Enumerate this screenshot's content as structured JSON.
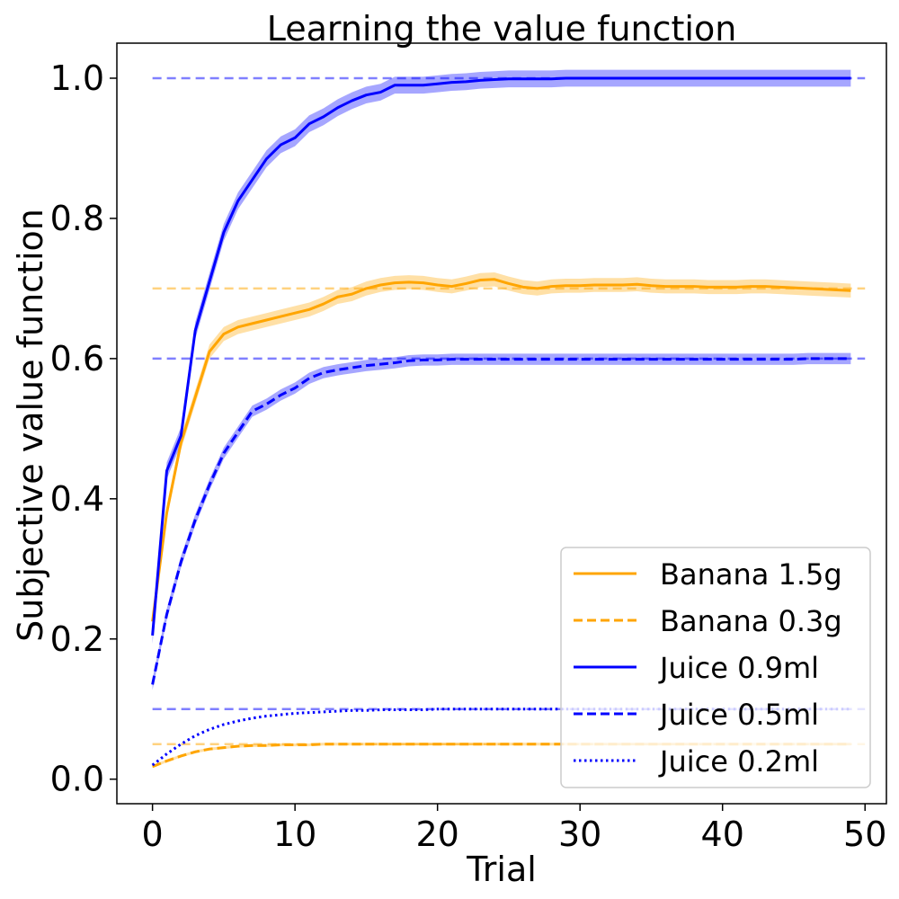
{
  "chart_data": {
    "type": "line",
    "title": "Learning the value function",
    "xlabel": "Trial",
    "ylabel": "Subjective value function",
    "xlim": [
      -2.5,
      51.5
    ],
    "ylim": [
      -0.035,
      1.05
    ],
    "xticks": [
      0,
      10,
      20,
      30,
      40,
      50
    ],
    "yticks": [
      0.0,
      0.2,
      0.4,
      0.6,
      0.8,
      1.0
    ],
    "xtick_labels": [
      "0",
      "10",
      "20",
      "30",
      "40",
      "50"
    ],
    "ytick_labels": [
      "0.0",
      "0.2",
      "0.4",
      "0.6",
      "0.8",
      "1.0"
    ],
    "grid": false,
    "legend_position": "lower-right",
    "colors": {
      "banana": "#ffa500",
      "juice": "#0000ff"
    },
    "reference_lines": [
      {
        "y": 1.0,
        "x_range": [
          0,
          50
        ],
        "color": "#0000ff"
      },
      {
        "y": 0.7,
        "x_range": [
          0,
          50
        ],
        "color": "#ffa500"
      },
      {
        "y": 0.6,
        "x_range": [
          0,
          50
        ],
        "color": "#0000ff"
      },
      {
        "y": 0.1,
        "x_range": [
          0,
          50
        ],
        "color": "#0000ff"
      },
      {
        "y": 0.05,
        "x_range": [
          0,
          50
        ],
        "color": "#ffa500"
      }
    ],
    "series": [
      {
        "name": "Banana 1.5g",
        "color": "#ffa500",
        "dash": "solid",
        "band": 0.01,
        "x": [
          0,
          1,
          2,
          3,
          4,
          5,
          6,
          7,
          8,
          9,
          10,
          11,
          12,
          13,
          14,
          15,
          16,
          17,
          18,
          19,
          20,
          21,
          22,
          23,
          24,
          25,
          26,
          27,
          28,
          29,
          30,
          31,
          32,
          33,
          34,
          35,
          36,
          37,
          38,
          39,
          40,
          41,
          42,
          43,
          44,
          45,
          46,
          47,
          48,
          49
        ],
        "y": [
          0.225,
          0.38,
          0.48,
          0.545,
          0.61,
          0.635,
          0.645,
          0.65,
          0.655,
          0.66,
          0.665,
          0.67,
          0.678,
          0.688,
          0.692,
          0.7,
          0.705,
          0.708,
          0.709,
          0.708,
          0.705,
          0.703,
          0.707,
          0.712,
          0.713,
          0.707,
          0.702,
          0.7,
          0.703,
          0.704,
          0.704,
          0.705,
          0.705,
          0.705,
          0.706,
          0.704,
          0.703,
          0.703,
          0.703,
          0.702,
          0.702,
          0.702,
          0.703,
          0.703,
          0.702,
          0.701,
          0.7,
          0.699,
          0.698,
          0.697
        ]
      },
      {
        "name": "Banana 0.3g",
        "color": "#ffa500",
        "dash": "dashed",
        "band": 0.002,
        "x": [
          0,
          1,
          2,
          3,
          4,
          5,
          6,
          7,
          8,
          9,
          10,
          11,
          12,
          13,
          14,
          15,
          16,
          17,
          18,
          19,
          20,
          21,
          22,
          23,
          24,
          25,
          26,
          27,
          28,
          29,
          30,
          31,
          32,
          33,
          34,
          35,
          36,
          37,
          38,
          39,
          40,
          41,
          42,
          43,
          44,
          45,
          46,
          47,
          48,
          49
        ],
        "y": [
          0.018,
          0.026,
          0.033,
          0.039,
          0.043,
          0.045,
          0.047,
          0.048,
          0.048,
          0.049,
          0.049,
          0.049,
          0.05,
          0.05,
          0.05,
          0.05,
          0.05,
          0.05,
          0.05,
          0.05,
          0.05,
          0.05,
          0.05,
          0.05,
          0.05,
          0.05,
          0.05,
          0.05,
          0.05,
          0.05,
          0.05,
          0.05,
          0.05,
          0.05,
          0.05,
          0.05,
          0.05,
          0.05,
          0.05,
          0.05,
          0.05,
          0.05,
          0.05,
          0.05,
          0.05,
          0.05,
          0.05,
          0.05,
          0.05,
          0.05
        ]
      },
      {
        "name": "Juice 0.9ml",
        "color": "#0000ff",
        "dash": "solid",
        "band": 0.012,
        "x": [
          0,
          1,
          2,
          3,
          4,
          5,
          6,
          7,
          8,
          9,
          10,
          11,
          12,
          13,
          14,
          15,
          16,
          17,
          18,
          19,
          20,
          21,
          22,
          23,
          24,
          25,
          26,
          27,
          28,
          29,
          30,
          31,
          32,
          33,
          34,
          35,
          36,
          37,
          38,
          39,
          40,
          41,
          42,
          43,
          44,
          45,
          46,
          47,
          48,
          49
        ],
        "y": [
          0.205,
          0.44,
          0.49,
          0.64,
          0.71,
          0.78,
          0.825,
          0.855,
          0.885,
          0.905,
          0.915,
          0.935,
          0.945,
          0.958,
          0.968,
          0.976,
          0.98,
          0.99,
          0.99,
          0.99,
          0.992,
          0.994,
          0.995,
          0.997,
          0.998,
          0.999,
          0.999,
          0.999,
          0.999,
          1.0,
          1.0,
          1.0,
          1.0,
          1.0,
          1.0,
          1.0,
          1.0,
          1.0,
          1.0,
          1.0,
          1.0,
          1.0,
          1.0,
          1.0,
          1.0,
          1.0,
          1.0,
          1.0,
          1.0,
          1.0
        ]
      },
      {
        "name": "Juice 0.5ml",
        "color": "#0000ff",
        "dash": "dashed",
        "band": 0.008,
        "x": [
          0,
          1,
          2,
          3,
          4,
          5,
          6,
          7,
          8,
          9,
          10,
          11,
          12,
          13,
          14,
          15,
          16,
          17,
          18,
          19,
          20,
          21,
          22,
          23,
          24,
          25,
          26,
          27,
          28,
          29,
          30,
          31,
          32,
          33,
          34,
          35,
          36,
          37,
          38,
          39,
          40,
          41,
          42,
          43,
          44,
          45,
          46,
          47,
          48,
          49
        ],
        "y": [
          0.135,
          0.235,
          0.31,
          0.37,
          0.42,
          0.465,
          0.495,
          0.525,
          0.535,
          0.548,
          0.558,
          0.572,
          0.58,
          0.584,
          0.587,
          0.59,
          0.592,
          0.594,
          0.597,
          0.598,
          0.598,
          0.599,
          0.599,
          0.599,
          0.599,
          0.599,
          0.599,
          0.599,
          0.599,
          0.599,
          0.599,
          0.599,
          0.599,
          0.599,
          0.599,
          0.599,
          0.599,
          0.599,
          0.599,
          0.599,
          0.599,
          0.599,
          0.599,
          0.599,
          0.599,
          0.599,
          0.6,
          0.6,
          0.6,
          0.6
        ]
      },
      {
        "name": "Juice 0.2ml",
        "color": "#0000ff",
        "dash": "dotted",
        "band": 0.001,
        "x": [
          0,
          1,
          2,
          3,
          4,
          5,
          6,
          7,
          8,
          9,
          10,
          11,
          12,
          13,
          14,
          15,
          16,
          17,
          18,
          19,
          20,
          21,
          22,
          23,
          24,
          25,
          26,
          27,
          28,
          29,
          30,
          31,
          32,
          33,
          34,
          35,
          36,
          37,
          38,
          39,
          40,
          41,
          42,
          43,
          44,
          45,
          46,
          47,
          48,
          49
        ],
        "y": [
          0.02,
          0.036,
          0.05,
          0.062,
          0.071,
          0.078,
          0.083,
          0.087,
          0.09,
          0.092,
          0.094,
          0.095,
          0.096,
          0.097,
          0.098,
          0.098,
          0.099,
          0.099,
          0.099,
          0.099,
          0.1,
          0.1,
          0.1,
          0.1,
          0.1,
          0.1,
          0.1,
          0.1,
          0.1,
          0.1,
          0.1,
          0.1,
          0.1,
          0.1,
          0.1,
          0.1,
          0.1,
          0.1,
          0.1,
          0.1,
          0.1,
          0.1,
          0.1,
          0.1,
          0.1,
          0.1,
          0.1,
          0.1,
          0.1,
          0.1
        ]
      }
    ]
  }
}
